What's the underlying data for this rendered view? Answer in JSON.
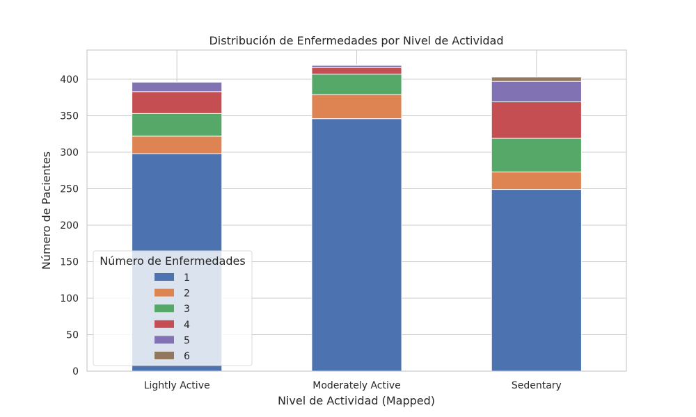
{
  "chart_data": {
    "type": "bar",
    "stacked": true,
    "title": "Distribución de Enfermedades por Nivel de Actividad",
    "xlabel": "Nivel de Actividad (Mapped)",
    "ylabel": "Número de Pacientes",
    "categories": [
      "Lightly Active",
      "Moderately Active",
      "Sedentary"
    ],
    "ylim": [
      0,
      440
    ],
    "yticks": [
      0,
      50,
      100,
      150,
      200,
      250,
      300,
      350,
      400
    ],
    "grid": true,
    "legend": {
      "title": "Número de Enfermedades",
      "placement": "lower-left"
    },
    "series": [
      {
        "name": "1",
        "color": "#4c72b0",
        "values": [
          298,
          346,
          249
        ]
      },
      {
        "name": "2",
        "color": "#dd8452",
        "values": [
          24,
          33,
          24
        ]
      },
      {
        "name": "3",
        "color": "#55a868",
        "values": [
          31,
          28,
          46
        ]
      },
      {
        "name": "4",
        "color": "#c44e52",
        "values": [
          30,
          9,
          50
        ]
      },
      {
        "name": "5",
        "color": "#8172b3",
        "values": [
          13,
          3,
          28
        ]
      },
      {
        "name": "6",
        "color": "#937860",
        "values": [
          0,
          1,
          6
        ]
      }
    ]
  }
}
